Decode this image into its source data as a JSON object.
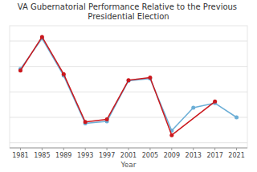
{
  "chart_data": {
    "type": "line",
    "title": "VA Gubernatorial Performance Relative to the Previous Presidential Election",
    "xlabel": "Year",
    "series": [
      {
        "color": "#6baed6",
        "marker": "circle",
        "x": [
          1981,
          1985,
          1989,
          1993,
          1997,
          2001,
          2005,
          2009,
          2013,
          2017,
          2021
        ],
        "values": [
          4.5,
          10.5,
          3.2,
          -6.2,
          -5.8,
          2.2,
          2.6,
          -7.6,
          -3.1,
          -2.2,
          -5.0
        ]
      },
      {
        "color": "#cb181d",
        "marker": "circle",
        "x": [
          1981,
          1985,
          1989,
          1993,
          1997,
          2001,
          2005,
          2009,
          2017
        ],
        "values": [
          4.2,
          10.8,
          3.5,
          -5.9,
          -5.4,
          2.3,
          2.8,
          -8.5,
          -1.9
        ]
      }
    ],
    "xlim": [
      1979,
      2023
    ],
    "xticks": [
      1981,
      1985,
      1989,
      1993,
      1997,
      2001,
      2005,
      2009,
      2013,
      2017,
      2021
    ],
    "ylim": [
      -11,
      13
    ],
    "yticks": [
      -10,
      -5,
      0,
      5,
      10
    ],
    "grid": true,
    "tick_labels": "x"
  }
}
